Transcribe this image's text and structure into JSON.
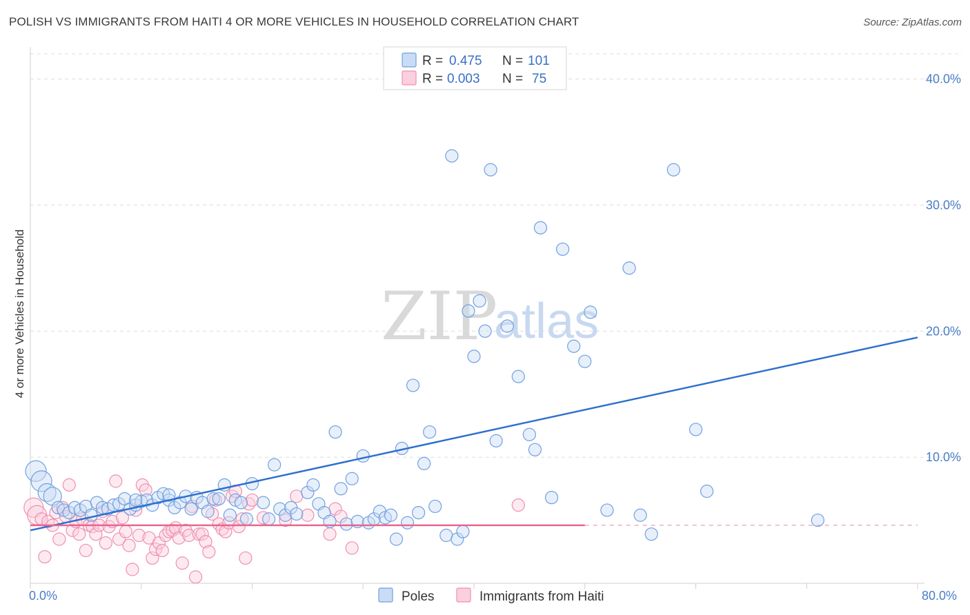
{
  "title": "POLISH VS IMMIGRANTS FROM HAITI 4 OR MORE VEHICLES IN HOUSEHOLD CORRELATION CHART",
  "source": "Source: ZipAtlas.com",
  "watermark": {
    "part1": "ZIP",
    "part2": "atlas"
  },
  "legend": {
    "r_label": "R =",
    "n_label": "N =",
    "rows": [
      {
        "name": "Poles",
        "r": "0.475",
        "n": "101",
        "color": "#6fa0e0"
      },
      {
        "name": "Immigrants from Haiti",
        "r": "0.003",
        "n": "75",
        "color": "#ee8faf"
      }
    ]
  },
  "chart_data": {
    "type": "scatter",
    "title": "POLISH VS IMMIGRANTS FROM HAITI 4 OR MORE VEHICLES IN HOUSEHOLD CORRELATION CHART",
    "xlabel": "",
    "ylabel": "4 or more Vehicles in Household",
    "xlim": [
      0,
      80
    ],
    "ylim": [
      0,
      42
    ],
    "x_tick_labels": [
      "0.0%",
      "80.0%"
    ],
    "y_ticks": [
      10,
      20,
      30,
      40
    ],
    "y_tick_labels": [
      "10.0%",
      "20.0%",
      "30.0%",
      "40.0%"
    ],
    "grid": true,
    "series": [
      {
        "name": "Poles",
        "color": "#6fa0e0",
        "trend": {
          "x": [
            0,
            80
          ],
          "y": [
            4.2,
            19.5
          ],
          "style": "solid"
        },
        "points": [
          [
            0.5,
            8.9
          ],
          [
            1.0,
            8.1
          ],
          [
            1.5,
            7.2
          ],
          [
            2.0,
            6.9
          ],
          [
            2.5,
            6.0
          ],
          [
            3.0,
            5.8
          ],
          [
            3.5,
            5.6
          ],
          [
            4.0,
            6.0
          ],
          [
            4.5,
            5.8
          ],
          [
            5.0,
            6.1
          ],
          [
            5.5,
            5.4
          ],
          [
            6.0,
            6.4
          ],
          [
            6.5,
            6.0
          ],
          [
            7.0,
            5.9
          ],
          [
            7.5,
            6.2
          ],
          [
            8.0,
            6.3
          ],
          [
            8.5,
            6.7
          ],
          [
            9.0,
            5.9
          ],
          [
            9.5,
            6.2
          ],
          [
            10.0,
            6.5
          ],
          [
            10.5,
            6.6
          ],
          [
            11.0,
            6.2
          ],
          [
            11.5,
            6.8
          ],
          [
            12.0,
            7.1
          ],
          [
            12.5,
            6.6
          ],
          [
            13.0,
            6.0
          ],
          [
            13.5,
            6.4
          ],
          [
            14.0,
            6.9
          ],
          [
            14.5,
            5.9
          ],
          [
            15.0,
            6.8
          ],
          [
            15.5,
            6.4
          ],
          [
            16.0,
            5.7
          ],
          [
            16.5,
            6.7
          ],
          [
            17.0,
            6.7
          ],
          [
            17.5,
            7.8
          ],
          [
            18.0,
            5.4
          ],
          [
            18.5,
            6.6
          ],
          [
            19.0,
            6.4
          ],
          [
            19.5,
            5.1
          ],
          [
            20.0,
            7.9
          ],
          [
            21.0,
            6.4
          ],
          [
            21.5,
            5.1
          ],
          [
            22.0,
            9.4
          ],
          [
            22.5,
            5.9
          ],
          [
            23.0,
            5.4
          ],
          [
            23.5,
            6.0
          ],
          [
            24.0,
            5.5
          ],
          [
            25.0,
            7.2
          ],
          [
            25.5,
            7.8
          ],
          [
            26.0,
            6.3
          ],
          [
            26.5,
            5.6
          ],
          [
            27.0,
            4.9
          ],
          [
            27.5,
            12.0
          ],
          [
            28.0,
            7.5
          ],
          [
            28.5,
            4.7
          ],
          [
            29.0,
            8.3
          ],
          [
            29.5,
            4.9
          ],
          [
            30.0,
            10.1
          ],
          [
            30.5,
            4.8
          ],
          [
            31.0,
            5.1
          ],
          [
            31.5,
            5.7
          ],
          [
            32.0,
            5.2
          ],
          [
            32.5,
            5.4
          ],
          [
            33.0,
            3.5
          ],
          [
            33.5,
            10.7
          ],
          [
            34.0,
            4.8
          ],
          [
            34.5,
            15.7
          ],
          [
            35.0,
            5.6
          ],
          [
            35.5,
            9.5
          ],
          [
            36.0,
            12.0
          ],
          [
            36.5,
            6.1
          ],
          [
            37.5,
            3.8
          ],
          [
            38.0,
            33.9
          ],
          [
            38.5,
            3.5
          ],
          [
            39.0,
            4.1
          ],
          [
            39.5,
            21.6
          ],
          [
            40.0,
            18.0
          ],
          [
            40.5,
            22.4
          ],
          [
            41.0,
            20.0
          ],
          [
            41.5,
            32.8
          ],
          [
            42.0,
            11.3
          ],
          [
            43.0,
            20.4
          ],
          [
            44.0,
            16.4
          ],
          [
            45.0,
            11.8
          ],
          [
            45.5,
            10.6
          ],
          [
            46.0,
            28.2
          ],
          [
            47.0,
            6.8
          ],
          [
            48.0,
            26.5
          ],
          [
            49.0,
            18.8
          ],
          [
            50.0,
            17.6
          ],
          [
            50.5,
            21.5
          ],
          [
            52.0,
            5.8
          ],
          [
            54.0,
            25.0
          ],
          [
            55.0,
            5.4
          ],
          [
            56.0,
            3.9
          ],
          [
            58.0,
            32.8
          ],
          [
            60.0,
            12.2
          ],
          [
            61.0,
            7.3
          ],
          [
            71.0,
            5.0
          ],
          [
            12.5,
            7.0
          ],
          [
            9.5,
            6.6
          ]
        ]
      },
      {
        "name": "Immigrants from Haiti",
        "color": "#ee8faf",
        "trend": {
          "x": [
            0,
            80
          ],
          "y": [
            4.6,
            4.6
          ],
          "style": "solid-then-dashed",
          "solid_until": 50
        },
        "points": [
          [
            0.3,
            6.0
          ],
          [
            0.6,
            5.4
          ],
          [
            1.0,
            5.1
          ],
          [
            1.3,
            2.1
          ],
          [
            1.6,
            4.9
          ],
          [
            2.0,
            4.6
          ],
          [
            2.3,
            5.6
          ],
          [
            2.6,
            3.5
          ],
          [
            2.9,
            6.0
          ],
          [
            3.2,
            5.3
          ],
          [
            3.5,
            7.8
          ],
          [
            3.8,
            4.2
          ],
          [
            4.1,
            4.9
          ],
          [
            4.4,
            3.9
          ],
          [
            4.7,
            5.1
          ],
          [
            5.0,
            2.6
          ],
          [
            5.3,
            4.6
          ],
          [
            5.6,
            4.5
          ],
          [
            5.9,
            3.9
          ],
          [
            6.2,
            4.6
          ],
          [
            6.5,
            5.7
          ],
          [
            6.8,
            3.2
          ],
          [
            7.1,
            4.5
          ],
          [
            7.4,
            4.9
          ],
          [
            7.7,
            8.1
          ],
          [
            8.0,
            3.5
          ],
          [
            8.3,
            5.2
          ],
          [
            8.6,
            4.1
          ],
          [
            8.9,
            3.0
          ],
          [
            9.2,
            1.1
          ],
          [
            9.5,
            5.8
          ],
          [
            9.8,
            3.8
          ],
          [
            10.1,
            7.8
          ],
          [
            10.4,
            7.4
          ],
          [
            10.7,
            3.6
          ],
          [
            11.0,
            2.0
          ],
          [
            11.3,
            2.7
          ],
          [
            11.6,
            3.2
          ],
          [
            11.9,
            2.6
          ],
          [
            12.2,
            3.8
          ],
          [
            12.5,
            4.1
          ],
          [
            12.8,
            4.2
          ],
          [
            13.1,
            4.4
          ],
          [
            13.4,
            3.6
          ],
          [
            13.7,
            1.6
          ],
          [
            14.0,
            4.2
          ],
          [
            14.3,
            3.8
          ],
          [
            14.6,
            6.1
          ],
          [
            14.9,
            0.5
          ],
          [
            15.2,
            3.9
          ],
          [
            15.5,
            3.9
          ],
          [
            15.8,
            3.3
          ],
          [
            16.1,
            2.5
          ],
          [
            16.4,
            5.5
          ],
          [
            16.7,
            6.6
          ],
          [
            17.0,
            4.7
          ],
          [
            17.3,
            4.3
          ],
          [
            17.6,
            4.1
          ],
          [
            17.9,
            4.8
          ],
          [
            18.2,
            6.9
          ],
          [
            18.5,
            7.3
          ],
          [
            18.8,
            4.5
          ],
          [
            19.1,
            5.1
          ],
          [
            19.4,
            2.0
          ],
          [
            19.7,
            6.3
          ],
          [
            20.0,
            6.6
          ],
          [
            21.0,
            5.2
          ],
          [
            23.0,
            5.0
          ],
          [
            24.0,
            6.9
          ],
          [
            25.0,
            5.4
          ],
          [
            27.0,
            3.9
          ],
          [
            27.5,
            5.9
          ],
          [
            28.0,
            5.3
          ],
          [
            29.0,
            2.8
          ],
          [
            44.0,
            6.2
          ]
        ]
      }
    ]
  },
  "bottom_legend": [
    {
      "label": "Poles",
      "color": "#6fa0e0"
    },
    {
      "label": "Immigrants from Haiti",
      "color": "#ee8faf"
    }
  ]
}
